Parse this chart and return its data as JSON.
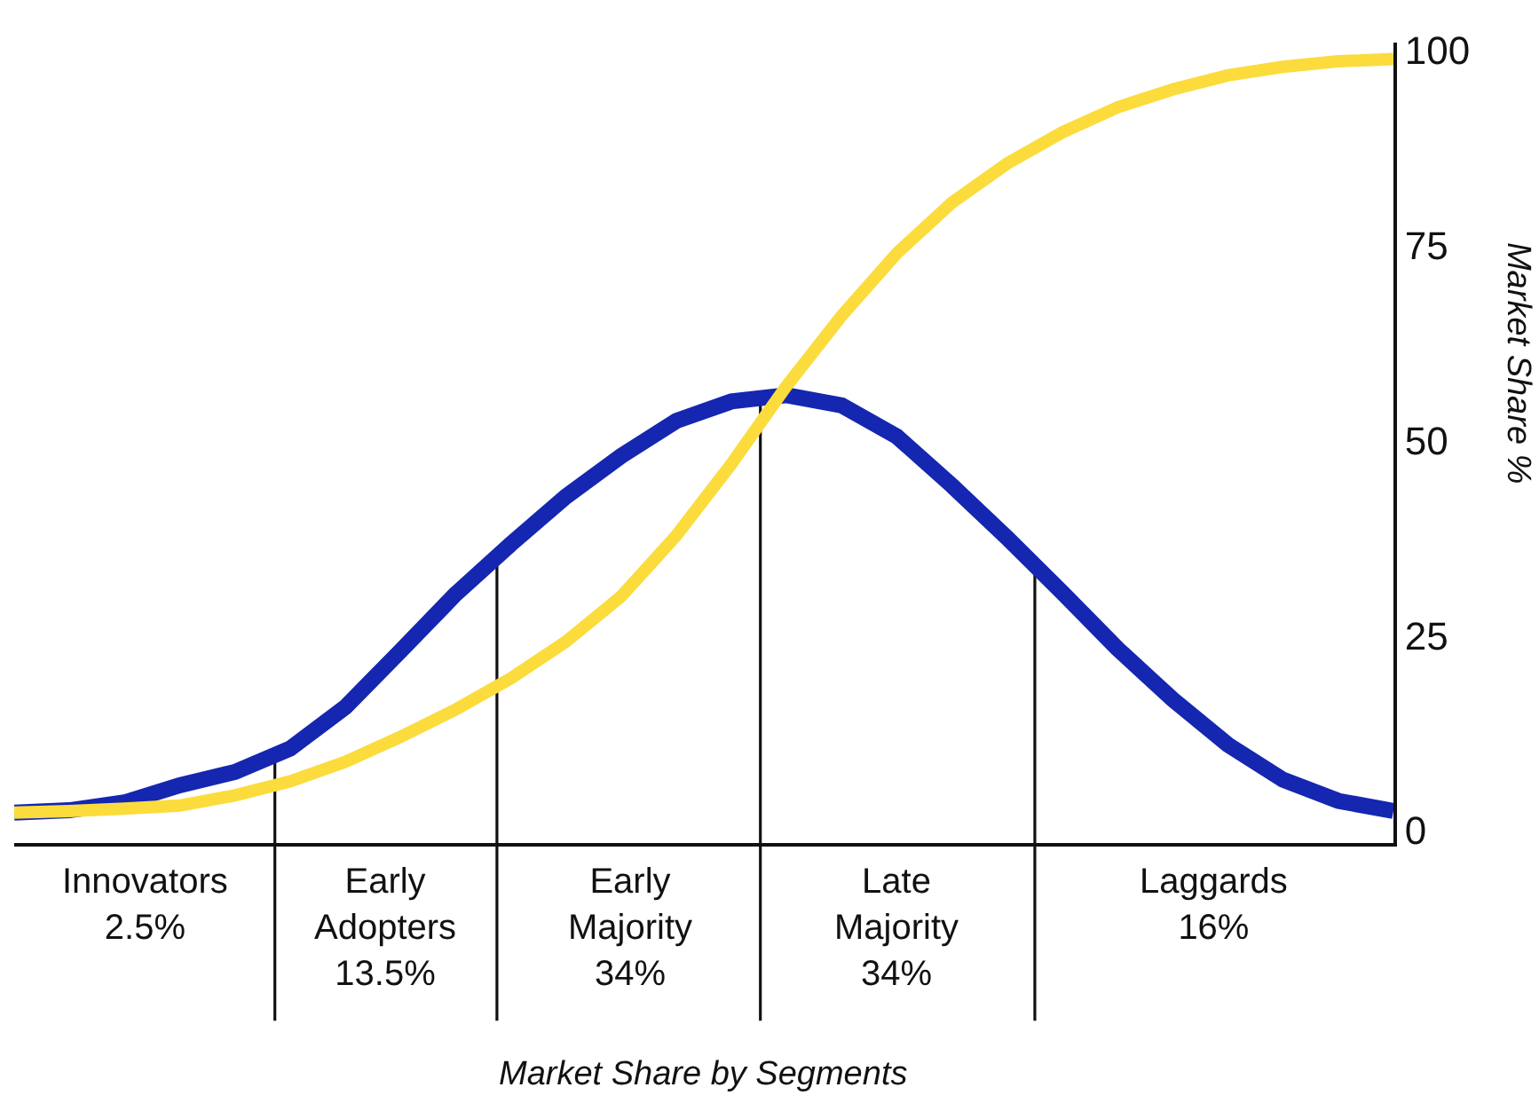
{
  "chart_data": {
    "type": "line",
    "ylabel": "Market Share %",
    "categories": [
      null,
      null,
      null,
      null,
      null,
      null,
      null,
      null,
      null,
      null,
      null,
      null,
      null,
      null,
      null,
      null,
      null,
      null,
      null,
      null,
      null,
      null,
      null,
      null,
      null,
      null
    ],
    "ylim": [
      -1.6,
      101
    ],
    "yticks": [
      0,
      25,
      50,
      75,
      100
    ],
    "tick_labels": "y",
    "series": [
      {
        "color": "#1526b0",
        "values": [
          2.3,
          2.6,
          3.6,
          5.8,
          7.5,
          10.5,
          15.8,
          23,
          30.3,
          36.7,
          42.8,
          48,
          52.5,
          55,
          55.8,
          54.5,
          50.5,
          44.2,
          37.5,
          30.5,
          23.3,
          16.8,
          11,
          6.5,
          3.8,
          2.5
        ]
      },
      {
        "color": "#fbdc3c",
        "values": [
          2.3,
          2.5,
          2.8,
          3.2,
          4.5,
          6.3,
          8.8,
          12,
          15.5,
          19.5,
          24.2,
          30,
          37.8,
          47,
          57,
          66,
          74,
          80.5,
          85.5,
          89.5,
          92.7,
          95,
          96.8,
          97.9,
          98.6,
          98.9
        ]
      }
    ],
    "annotations": [
      "Innovators\n2.5%",
      "Early\nAdopters\n13.5%",
      "Early\nMajority\n34%",
      "Late\nMajority\n34%",
      "Laggards\n16%",
      "Market Share by Segments"
    ]
  }
}
